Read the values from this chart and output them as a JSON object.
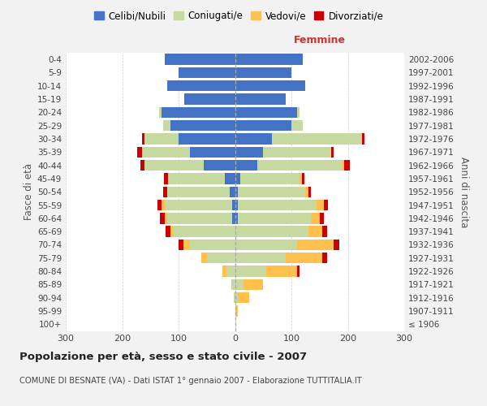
{
  "age_groups": [
    "100+",
    "95-99",
    "90-94",
    "85-89",
    "80-84",
    "75-79",
    "70-74",
    "65-69",
    "60-64",
    "55-59",
    "50-54",
    "45-49",
    "40-44",
    "35-39",
    "30-34",
    "25-29",
    "20-24",
    "15-19",
    "10-14",
    "5-9",
    "0-4"
  ],
  "birth_years": [
    "≤ 1906",
    "1907-1911",
    "1912-1916",
    "1917-1921",
    "1922-1926",
    "1927-1931",
    "1932-1936",
    "1937-1941",
    "1942-1946",
    "1947-1951",
    "1952-1956",
    "1957-1961",
    "1962-1966",
    "1967-1971",
    "1972-1976",
    "1977-1981",
    "1982-1986",
    "1987-1991",
    "1992-1996",
    "1997-2001",
    "2002-2006"
  ],
  "males_celibi": [
    0,
    0,
    0,
    0,
    0,
    0,
    0,
    0,
    5,
    5,
    10,
    18,
    55,
    80,
    100,
    115,
    130,
    90,
    120,
    100,
    125
  ],
  "males_coniugati": [
    0,
    0,
    2,
    5,
    15,
    50,
    80,
    110,
    115,
    120,
    110,
    100,
    105,
    85,
    60,
    12,
    5,
    0,
    0,
    0,
    0
  ],
  "males_vedovi": [
    0,
    0,
    0,
    2,
    8,
    10,
    12,
    5,
    5,
    5,
    0,
    0,
    0,
    0,
    0,
    0,
    0,
    0,
    0,
    0,
    0
  ],
  "males_divorziati": [
    0,
    0,
    0,
    0,
    0,
    0,
    8,
    8,
    8,
    8,
    8,
    8,
    8,
    8,
    5,
    0,
    0,
    0,
    0,
    0,
    0
  ],
  "females_nubili": [
    0,
    0,
    0,
    0,
    0,
    0,
    0,
    0,
    5,
    5,
    5,
    10,
    40,
    50,
    65,
    100,
    110,
    90,
    125,
    100,
    120
  ],
  "females_coniugate": [
    0,
    0,
    5,
    15,
    55,
    90,
    110,
    130,
    130,
    140,
    120,
    105,
    150,
    120,
    160,
    20,
    5,
    0,
    0,
    0,
    0
  ],
  "females_vedove": [
    0,
    5,
    20,
    35,
    55,
    65,
    65,
    25,
    15,
    12,
    5,
    3,
    3,
    0,
    0,
    0,
    0,
    0,
    0,
    0,
    0
  ],
  "females_divorziate": [
    0,
    0,
    0,
    0,
    5,
    8,
    10,
    8,
    8,
    8,
    5,
    5,
    10,
    5,
    5,
    0,
    0,
    0,
    0,
    0,
    0
  ],
  "color_celibi": "#4472c4",
  "color_coniugati": "#c5d9a0",
  "color_vedovi": "#ffc04d",
  "color_divorziati": "#cc0000",
  "xlim": 300,
  "title": "Popolazione per età, sesso e stato civile - 2007",
  "subtitle": "COMUNE DI BESNATE (VA) - Dati ISTAT 1° gennaio 2007 - Elaborazione TUTTITALIA.IT",
  "ylabel_left": "Fasce di età",
  "ylabel_right": "Anni di nascita",
  "label_femmine": "Femmine",
  "legend_labels": [
    "Celibi/Nubili",
    "Coniugati/e",
    "Vedovi/e",
    "Divorziati/e"
  ],
  "bg_color": "#f2f2f2",
  "plot_bg_color": "#ffffff"
}
